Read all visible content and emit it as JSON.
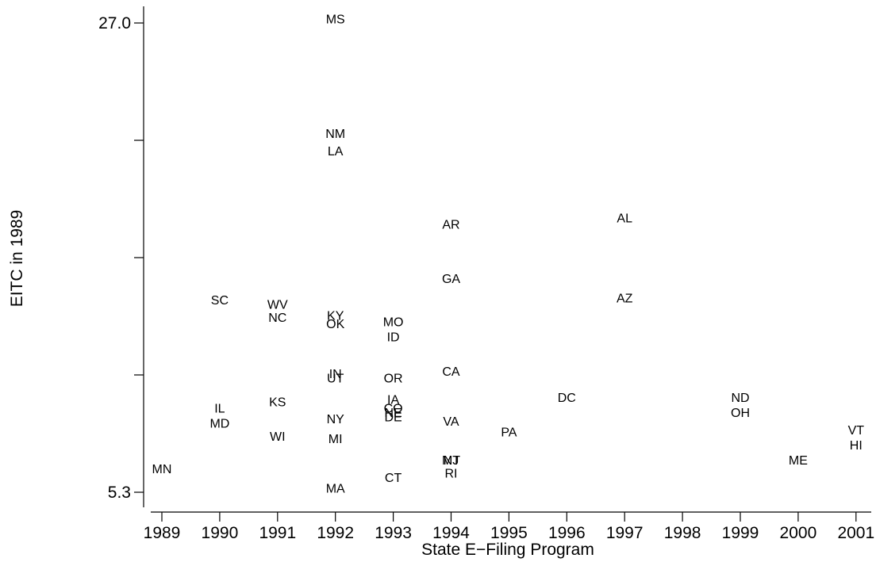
{
  "chart_data": {
    "type": "scatter",
    "title": "",
    "xlabel": "State E−Filing Program",
    "ylabel": "EITC in 1989",
    "xlim": [
      1988.8,
      2001.3
    ],
    "ylim": [
      5.3,
      27.0
    ],
    "x_ticks": [
      1989,
      1990,
      1991,
      1992,
      1993,
      1994,
      1995,
      1996,
      1997,
      1998,
      1999,
      2000,
      2001
    ],
    "x_tick_labels": [
      "1989",
      "1990",
      "1991",
      "1992",
      "1993",
      "1994",
      "1995",
      "1996",
      "1997",
      "1998",
      "1999",
      "2000",
      "2001"
    ],
    "y_ticks": [
      5.3,
      10.725,
      16.15,
      21.575,
      27.0
    ],
    "y_tick_labels": [
      "5.3",
      "",
      "",
      "",
      "27.0"
    ],
    "grid": false,
    "legend": "none",
    "marker": "state-abbreviation-label",
    "points": [
      {
        "label": "MN",
        "x": 1989,
        "y": 6.4
      },
      {
        "label": "SC",
        "x": 1990,
        "y": 14.2
      },
      {
        "label": "IL",
        "x": 1990,
        "y": 9.2
      },
      {
        "label": "MD",
        "x": 1990,
        "y": 8.5
      },
      {
        "label": "WV",
        "x": 1991,
        "y": 14.0
      },
      {
        "label": "NC",
        "x": 1991,
        "y": 13.4
      },
      {
        "label": "KS",
        "x": 1991,
        "y": 9.5
      },
      {
        "label": "WI",
        "x": 1991,
        "y": 7.9
      },
      {
        "label": "MS",
        "x": 1992,
        "y": 27.2
      },
      {
        "label": "NM",
        "x": 1992,
        "y": 21.9
      },
      {
        "label": "LA",
        "x": 1992,
        "y": 21.1
      },
      {
        "label": "KY",
        "x": 1992,
        "y": 13.5
      },
      {
        "label": "OK",
        "x": 1992,
        "y": 13.1
      },
      {
        "label": "IN",
        "x": 1992,
        "y": 10.8
      },
      {
        "label": "UT",
        "x": 1992,
        "y": 10.6
      },
      {
        "label": "NY",
        "x": 1992,
        "y": 8.7
      },
      {
        "label": "MI",
        "x": 1992,
        "y": 7.8
      },
      {
        "label": "MA",
        "x": 1992,
        "y": 5.5
      },
      {
        "label": "MO",
        "x": 1993,
        "y": 13.2
      },
      {
        "label": "ID",
        "x": 1993,
        "y": 12.5
      },
      {
        "label": "OR",
        "x": 1993,
        "y": 10.6
      },
      {
        "label": "IA",
        "x": 1993,
        "y": 9.6
      },
      {
        "label": "CO",
        "x": 1993,
        "y": 9.2
      },
      {
        "label": "NE",
        "x": 1993,
        "y": 9.0
      },
      {
        "label": "DE",
        "x": 1993,
        "y": 8.8
      },
      {
        "label": "CT",
        "x": 1993,
        "y": 6.0
      },
      {
        "label": "AR",
        "x": 1994,
        "y": 17.7
      },
      {
        "label": "GA",
        "x": 1994,
        "y": 15.2
      },
      {
        "label": "CA",
        "x": 1994,
        "y": 10.9
      },
      {
        "label": "VA",
        "x": 1994,
        "y": 8.6
      },
      {
        "label": "NJ",
        "x": 1994,
        "y": 6.8
      },
      {
        "label": "MT",
        "x": 1994,
        "y": 6.8
      },
      {
        "label": "RI",
        "x": 1994,
        "y": 6.2
      },
      {
        "label": "PA",
        "x": 1995,
        "y": 8.1
      },
      {
        "label": "DC",
        "x": 1996,
        "y": 9.7
      },
      {
        "label": "AL",
        "x": 1997,
        "y": 18.0
      },
      {
        "label": "AZ",
        "x": 1997,
        "y": 14.3
      },
      {
        "label": "ND",
        "x": 1999,
        "y": 9.7
      },
      {
        "label": "OH",
        "x": 1999,
        "y": 9.0
      },
      {
        "label": "ME",
        "x": 2000,
        "y": 6.8
      },
      {
        "label": "VT",
        "x": 2001,
        "y": 8.2
      },
      {
        "label": "HI",
        "x": 2001,
        "y": 7.5
      }
    ]
  }
}
